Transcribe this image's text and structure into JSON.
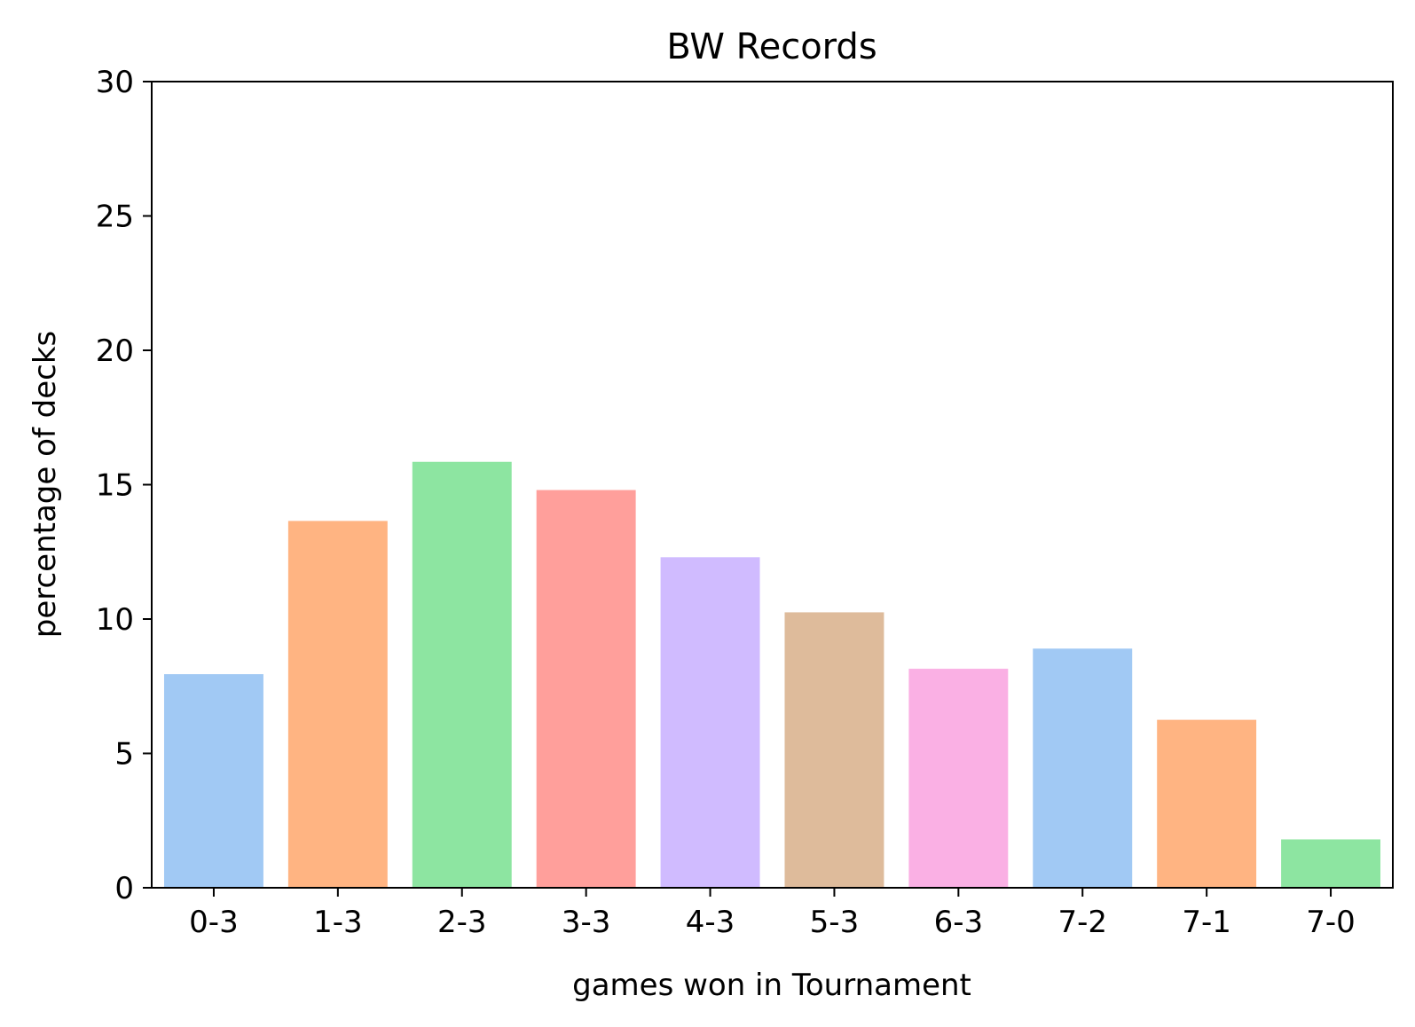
{
  "chart_data": {
    "type": "bar",
    "title": "BW Records",
    "xlabel": "games won in Tournament",
    "ylabel": "percentage of decks",
    "categories": [
      "0-3",
      "1-3",
      "2-3",
      "3-3",
      "4-3",
      "5-3",
      "6-3",
      "7-2",
      "7-1",
      "7-0"
    ],
    "values": [
      7.95,
      13.65,
      15.85,
      14.8,
      12.3,
      10.25,
      8.15,
      8.9,
      6.25,
      1.8
    ],
    "ylim": [
      0,
      30
    ],
    "yticks": [
      "0",
      "5",
      "10",
      "15",
      "20",
      "25",
      "30"
    ],
    "grid": false,
    "legend": "none",
    "colors": [
      "#a1c9f4",
      "#ffb482",
      "#8de5a1",
      "#ff9f9b",
      "#d0bbff",
      "#debb9b",
      "#fab0e4",
      "#a1c9f4",
      "#ffb482",
      "#8de5a1"
    ]
  }
}
